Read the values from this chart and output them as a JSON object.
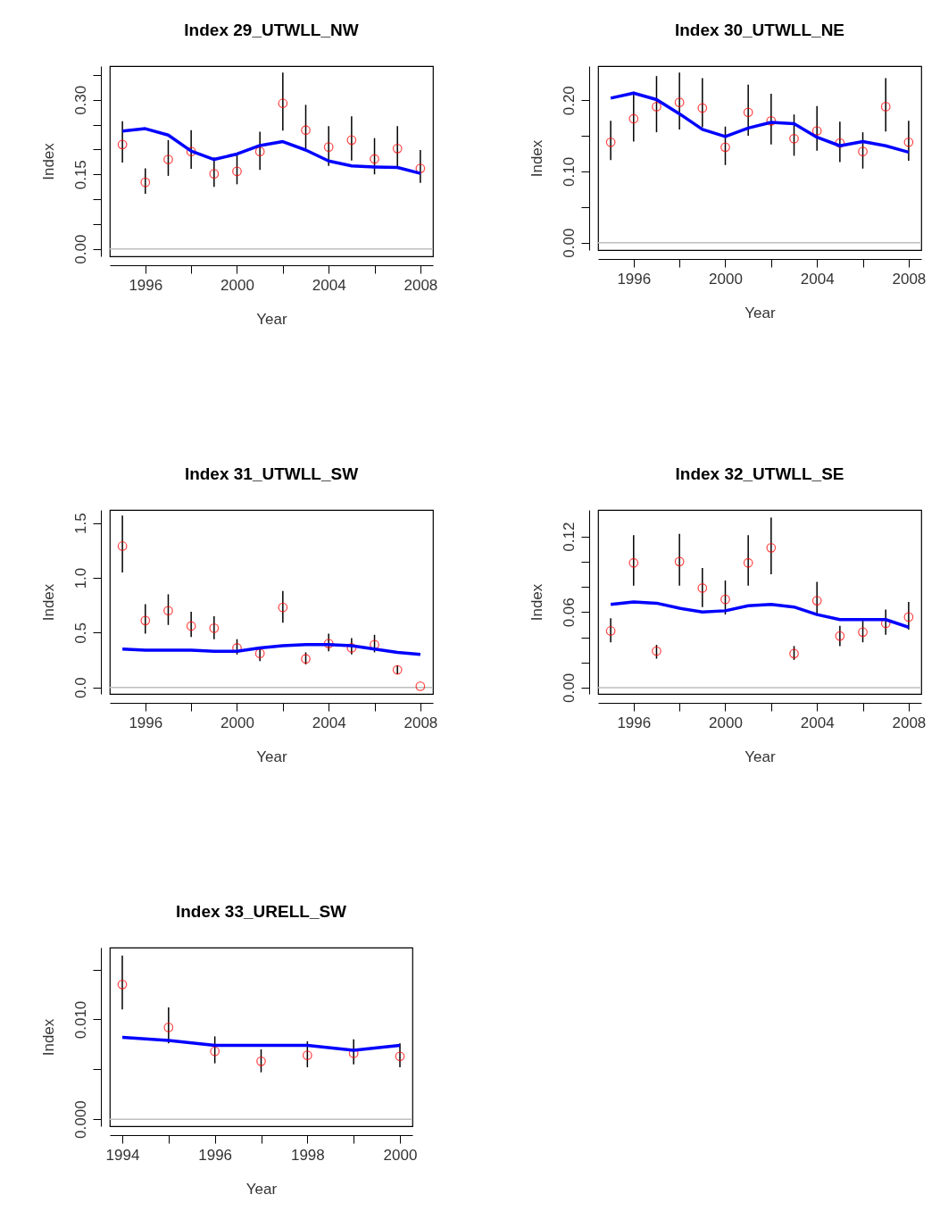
{
  "chart_data": [
    {
      "type": "scatter",
      "title": "Index 29_UTWLL_NW",
      "xlabel": "Year",
      "ylabel": "Index",
      "x": [
        1995,
        1996,
        1997,
        1998,
        1999,
        2000,
        2001,
        2002,
        2003,
        2004,
        2005,
        2006,
        2007,
        2008
      ],
      "series": [
        {
          "color": "#ff0000",
          "values": [
            0.21,
            0.134,
            0.18,
            0.196,
            0.151,
            0.156,
            0.196,
            0.293,
            0.239,
            0.205,
            0.219,
            0.181,
            0.202,
            0.162
          ],
          "errors": [
            [
              0.174,
              0.257
            ],
            [
              0.111,
              0.162
            ],
            [
              0.147,
              0.219
            ],
            [
              0.161,
              0.239
            ],
            [
              0.125,
              0.184
            ],
            [
              0.13,
              0.189
            ],
            [
              0.159,
              0.236
            ],
            [
              0.238,
              0.355
            ],
            [
              0.202,
              0.29
            ],
            [
              0.167,
              0.247
            ],
            [
              0.178,
              0.267
            ],
            [
              0.15,
              0.223
            ],
            [
              0.165,
              0.247
            ],
            [
              0.133,
              0.199
            ]
          ]
        },
        {
          "type": "line",
          "marker": "none",
          "color": "#0000ff",
          "values": [
            0.237,
            0.242,
            0.229,
            0.197,
            0.18,
            0.191,
            0.208,
            0.216,
            0.199,
            0.177,
            0.167,
            0.165,
            0.164,
            0.152
          ]
        }
      ],
      "xlim": [
        1994.45,
        2008.55
      ],
      "ylim": [
        -0.015,
        0.368
      ],
      "xticks": [
        1996,
        {
          "value": 1998,
          "label": null
        },
        2000,
        {
          "value": 2002,
          "label": null
        },
        2004,
        {
          "value": 2006,
          "label": null
        },
        2008
      ],
      "yticks": [
        {
          "value": 0,
          "label": "0.00"
        },
        {
          "value": 0.05,
          "label": null
        },
        {
          "value": 0.1,
          "label": null
        },
        0.15,
        {
          "value": 0.2,
          "label": null
        },
        {
          "value": 0.25,
          "label": null
        },
        {
          "value": 0.3,
          "label": "0.30"
        },
        {
          "value": 0.35,
          "label": null
        }
      ],
      "ref_lines": [
        {
          "axis": "y",
          "value": 0,
          "color": "#bebebe"
        }
      ],
      "marker": "circle",
      "grid": false
    },
    {
      "type": "scatter",
      "title": "Index 30_UTWLL_NE",
      "xlabel": "Year",
      "ylabel": "Index",
      "x": [
        1995,
        1996,
        1997,
        1998,
        1999,
        2000,
        2001,
        2002,
        2003,
        2004,
        2005,
        2006,
        2007,
        2008
      ],
      "series": [
        {
          "color": "#ff0000",
          "values": [
            0.141,
            0.174,
            0.191,
            0.197,
            0.189,
            0.134,
            0.183,
            0.171,
            0.146,
            0.157,
            0.14,
            0.128,
            0.191,
            0.141
          ],
          "errors": [
            [
              0.116,
              0.171
            ],
            [
              0.142,
              0.212
            ],
            [
              0.155,
              0.234
            ],
            [
              0.159,
              0.239
            ],
            [
              0.162,
              0.231
            ],
            [
              0.109,
              0.163
            ],
            [
              0.15,
              0.222
            ],
            [
              0.138,
              0.209
            ],
            [
              0.122,
              0.18
            ],
            [
              0.129,
              0.192
            ],
            [
              0.113,
              0.17
            ],
            [
              0.104,
              0.155
            ],
            [
              0.156,
              0.231
            ],
            [
              0.115,
              0.171
            ]
          ]
        },
        {
          "type": "line",
          "marker": "none",
          "color": "#0000ff",
          "values": [
            0.203,
            0.21,
            0.201,
            0.181,
            0.159,
            0.149,
            0.161,
            0.169,
            0.167,
            0.148,
            0.136,
            0.142,
            0.136,
            0.127
          ]
        }
      ],
      "xlim": [
        1994.45,
        2008.55
      ],
      "ylim": [
        -0.0105,
        0.248
      ],
      "xticks": [
        1996,
        {
          "value": 1998,
          "label": null
        },
        2000,
        {
          "value": 2002,
          "label": null
        },
        2004,
        {
          "value": 2006,
          "label": null
        },
        2008
      ],
      "yticks": [
        {
          "value": 0,
          "label": "0.00"
        },
        {
          "value": 0.05,
          "label": null
        },
        {
          "value": 0.1,
          "label": "0.10"
        },
        {
          "value": 0.15,
          "label": null
        },
        {
          "value": 0.2,
          "label": "0.20"
        }
      ],
      "ref_lines": [
        {
          "axis": "y",
          "value": 0,
          "color": "#bebebe"
        }
      ],
      "marker": "circle",
      "grid": false
    },
    {
      "type": "scatter",
      "title": "Index 31_UTWLL_SW",
      "xlabel": "Year",
      "ylabel": "Index",
      "x": [
        1995,
        1996,
        1997,
        1998,
        1999,
        2000,
        2001,
        2002,
        2003,
        2004,
        2005,
        2006,
        2007,
        2008
      ],
      "series": [
        {
          "color": "#ff0000",
          "values": [
            1.29,
            0.61,
            0.7,
            0.56,
            0.54,
            0.36,
            0.31,
            0.73,
            0.26,
            0.4,
            0.36,
            0.39,
            0.16,
            0.01
          ],
          "errors": [
            [
              1.05,
              1.57
            ],
            [
              0.49,
              0.76
            ],
            [
              0.57,
              0.85
            ],
            [
              0.46,
              0.69
            ],
            [
              0.44,
              0.65
            ],
            [
              0.3,
              0.44
            ],
            [
              0.24,
              0.37
            ],
            [
              0.59,
              0.88
            ],
            [
              0.21,
              0.32
            ],
            [
              0.33,
              0.49
            ],
            [
              0.3,
              0.45
            ],
            [
              0.32,
              0.48
            ],
            [
              0.12,
              0.2
            ],
            null
          ]
        },
        {
          "type": "line",
          "marker": "none",
          "color": "#0000ff",
          "values": [
            0.35,
            0.34,
            0.34,
            0.34,
            0.33,
            0.33,
            0.36,
            0.38,
            0.39,
            0.39,
            0.38,
            0.35,
            0.32,
            0.3
          ]
        }
      ],
      "xlim": [
        1994.45,
        2008.55
      ],
      "ylim": [
        -0.06,
        1.62
      ],
      "xticks": [
        1996,
        {
          "value": 1998,
          "label": null
        },
        2000,
        {
          "value": 2002,
          "label": null
        },
        2004,
        {
          "value": 2006,
          "label": null
        },
        2008
      ],
      "yticks": [
        {
          "value": 0,
          "label": "0.0"
        },
        0.5,
        {
          "value": 1,
          "label": "1.0"
        },
        1.5
      ],
      "ref_lines": [
        {
          "axis": "y",
          "value": 0,
          "color": "#bebebe"
        }
      ],
      "marker": "circle",
      "grid": false
    },
    {
      "type": "scatter",
      "title": "Index 32_UTWLL_SE",
      "xlabel": "Year",
      "ylabel": "Index",
      "x": [
        1995,
        1996,
        1997,
        1998,
        1999,
        2000,
        2001,
        2002,
        2003,
        2004,
        2005,
        2006,
        2007,
        2008
      ],
      "series": [
        {
          "color": "#ff0000",
          "values": [
            0.045,
            0.099,
            0.029,
            0.1,
            0.079,
            0.07,
            0.099,
            0.111,
            0.027,
            0.069,
            0.041,
            0.044,
            0.051,
            0.056
          ],
          "errors": [
            [
              0.036,
              0.055
            ],
            [
              0.081,
              0.121
            ],
            [
              0.023,
              0.034
            ],
            [
              0.081,
              0.122
            ],
            [
              0.064,
              0.095
            ],
            [
              0.058,
              0.085
            ],
            [
              0.081,
              0.121
            ],
            [
              0.09,
              0.135
            ],
            [
              0.022,
              0.033
            ],
            [
              0.058,
              0.084
            ],
            [
              0.033,
              0.049
            ],
            [
              0.036,
              0.053
            ],
            [
              0.042,
              0.062
            ],
            [
              0.046,
              0.068
            ]
          ]
        },
        {
          "type": "line",
          "marker": "none",
          "color": "#0000ff",
          "values": [
            0.066,
            0.068,
            0.067,
            0.063,
            0.06,
            0.061,
            0.065,
            0.066,
            0.064,
            0.058,
            0.054,
            0.054,
            0.054,
            0.048
          ]
        }
      ],
      "xlim": [
        1994.45,
        2008.55
      ],
      "ylim": [
        -0.005,
        0.141
      ],
      "xticks": [
        1996,
        {
          "value": 1998,
          "label": null
        },
        2000,
        {
          "value": 2002,
          "label": null
        },
        2004,
        {
          "value": 2006,
          "label": null
        },
        2008
      ],
      "yticks": [
        {
          "value": 0,
          "label": "0.00"
        },
        {
          "value": 0.02,
          "label": null
        },
        {
          "value": 0.04,
          "label": null
        },
        0.06,
        {
          "value": 0.08,
          "label": null
        },
        {
          "value": 0.1,
          "label": null
        },
        0.12
      ],
      "ref_lines": [
        {
          "axis": "y",
          "value": 0,
          "color": "#bebebe"
        }
      ],
      "marker": "circle",
      "grid": false
    },
    {
      "type": "scatter",
      "title": "Index 33_URELL_SW",
      "xlabel": "Year",
      "ylabel": "Index",
      "x": [
        1994,
        1995,
        1996,
        1997,
        1998,
        1999,
        2000
      ],
      "series": [
        {
          "color": "#ff0000",
          "values": [
            0.0135,
            0.0092,
            0.0068,
            0.0058,
            0.0064,
            0.0066,
            0.0063
          ],
          "errors": [
            [
              0.011,
              0.0164
            ],
            [
              0.0076,
              0.0112
            ],
            [
              0.0056,
              0.0083
            ],
            [
              0.0047,
              0.007
            ],
            [
              0.0052,
              0.0078
            ],
            [
              0.0055,
              0.008
            ],
            [
              0.0052,
              0.0076
            ]
          ]
        },
        {
          "type": "line",
          "marker": "none",
          "color": "#0000ff",
          "values": [
            0.0082,
            0.0079,
            0.0074,
            0.0074,
            0.0074,
            0.0069,
            0.0074
          ]
        }
      ],
      "xlim": [
        1993.73,
        2000.27
      ],
      "ylim": [
        -0.0007,
        0.0172
      ],
      "xticks": [
        1994,
        {
          "value": 1995,
          "label": null
        },
        1996,
        {
          "value": 1997,
          "label": null
        },
        1998,
        {
          "value": 1999,
          "label": null
        },
        2000
      ],
      "yticks": [
        {
          "value": 0,
          "label": "0.000"
        },
        {
          "value": 0.005,
          "label": null
        },
        {
          "value": 0.01,
          "label": "0.010"
        },
        {
          "value": 0.015,
          "label": null
        }
      ],
      "ref_lines": [
        {
          "axis": "y",
          "value": 0,
          "color": "#bebebe"
        }
      ],
      "marker": "circle",
      "grid": false
    }
  ]
}
